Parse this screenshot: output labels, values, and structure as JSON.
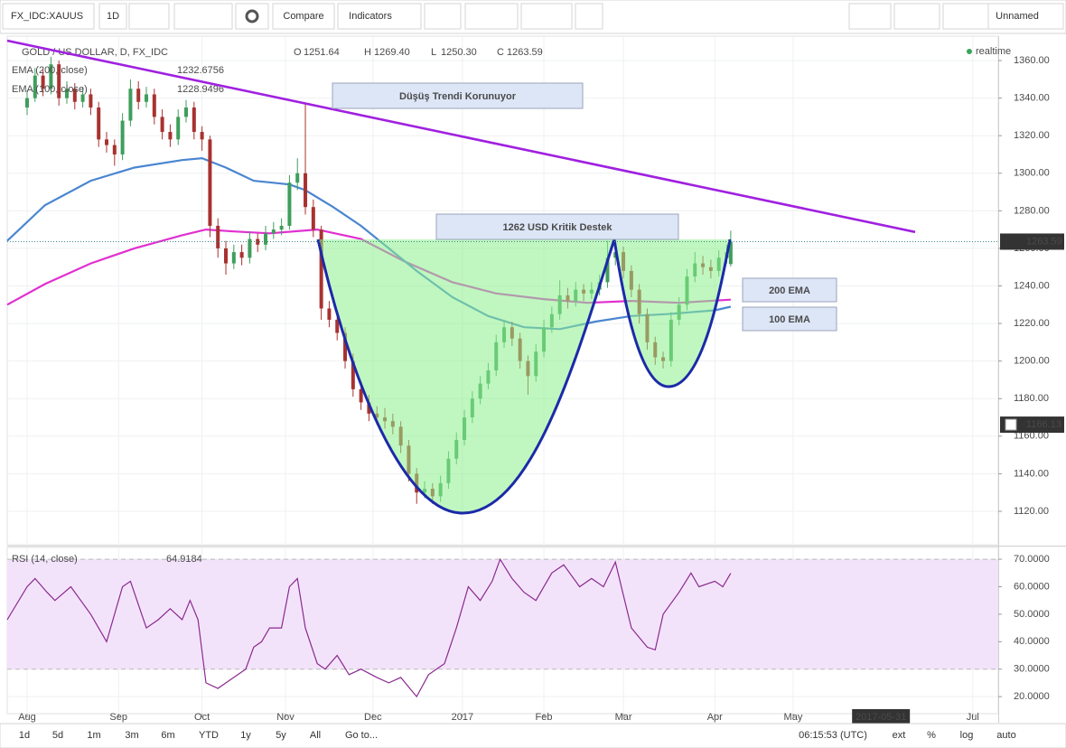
{
  "toolbar": {
    "symbol": "FX_IDC:XAUUS",
    "interval": "1D",
    "compare": "Compare",
    "indicators": "Indicators",
    "layout": "Unnamed"
  },
  "bottom_bar": {
    "ranges": [
      "1d",
      "5d",
      "1m",
      "3m",
      "6m",
      "YTD",
      "1y",
      "5y",
      "All"
    ],
    "goto": "Go to...",
    "time": "06:15:53 (UTC)",
    "options": [
      "ext",
      "%",
      "log",
      "auto"
    ]
  },
  "chart_data": [
    {
      "type": "candlestick",
      "title": "GOLD / US DOLLAR, D, FX_IDC",
      "status": "realtime",
      "ohlc_legend": [
        {
          "key": "O",
          "text": "1251.64"
        },
        {
          "key": "H",
          "text": "1269.40"
        },
        {
          "key": "L",
          "text": "1250.30"
        },
        {
          "key": "C",
          "text": "1263.59"
        }
      ],
      "up_color": "#3f9e5c",
      "down_color": "#a8322f",
      "x": [
        0,
        2,
        4,
        6,
        8,
        10,
        12,
        14,
        16,
        18,
        20,
        22,
        24,
        26,
        28,
        30,
        32,
        34,
        36,
        38,
        40,
        42,
        44,
        46,
        48,
        50,
        52,
        54,
        56,
        58,
        60,
        62,
        64,
        66,
        68,
        70,
        72,
        74,
        76,
        78,
        80,
        82,
        84,
        86,
        88,
        90,
        92,
        94,
        96,
        98,
        100,
        102,
        104,
        106,
        108,
        110,
        112,
        114,
        116,
        118,
        120,
        122,
        124,
        126,
        128,
        130,
        132,
        134,
        136,
        138,
        140,
        142,
        144,
        146,
        148,
        150,
        152,
        154,
        156,
        158,
        160,
        162,
        164,
        166,
        168,
        170,
        172,
        174,
        176,
        177
      ],
      "open": [
        1335,
        1340,
        1352,
        1345,
        1358,
        1340,
        1345,
        1338,
        1342,
        1335,
        1318,
        1315,
        1310,
        1328,
        1345,
        1338,
        1342,
        1330,
        1322,
        1318,
        1330,
        1335,
        1322,
        1318,
        1272,
        1260,
        1252,
        1258,
        1255,
        1265,
        1262,
        1268,
        1270,
        1272,
        1295,
        1300,
        1282,
        1270,
        1228,
        1222,
        1215,
        1200,
        1185,
        1178,
        1172,
        1170,
        1168,
        1165,
        1155,
        1140,
        1130,
        1132,
        1128,
        1135,
        1148,
        1158,
        1170,
        1180,
        1188,
        1195,
        1210,
        1218,
        1212,
        1200,
        1192,
        1205,
        1218,
        1225,
        1235,
        1232,
        1238,
        1236,
        1238,
        1242,
        1255,
        1258,
        1248,
        1238,
        1225,
        1210,
        1202,
        1200,
        1222,
        1230,
        1245,
        1252,
        1250,
        1248,
        1255,
        1251.64
      ],
      "high": [
        1344,
        1356,
        1355,
        1362,
        1360,
        1349,
        1348,
        1346,
        1345,
        1338,
        1322,
        1318,
        1332,
        1350,
        1349,
        1346,
        1345,
        1334,
        1326,
        1334,
        1339,
        1338,
        1325,
        1320,
        1276,
        1264,
        1262,
        1262,
        1269,
        1268,
        1272,
        1274,
        1276,
        1299,
        1308,
        1337,
        1286,
        1272,
        1232,
        1226,
        1218,
        1204,
        1189,
        1182,
        1176,
        1175,
        1172,
        1168,
        1158,
        1143,
        1136,
        1135,
        1139,
        1152,
        1162,
        1174,
        1184,
        1192,
        1199,
        1214,
        1222,
        1221,
        1215,
        1203,
        1209,
        1222,
        1229,
        1243,
        1239,
        1242,
        1241,
        1242,
        1246,
        1264,
        1262,
        1261,
        1251,
        1241,
        1228,
        1213,
        1205,
        1226,
        1234,
        1249,
        1258,
        1256,
        1254,
        1259,
        1262,
        1269.4
      ],
      "low": [
        1331,
        1338,
        1341,
        1342,
        1336,
        1337,
        1334,
        1335,
        1331,
        1314,
        1311,
        1304,
        1307,
        1325,
        1334,
        1335,
        1326,
        1318,
        1314,
        1315,
        1327,
        1318,
        1312,
        1266,
        1255,
        1246,
        1249,
        1251,
        1252,
        1258,
        1259,
        1265,
        1267,
        1270,
        1291,
        1278,
        1266,
        1222,
        1218,
        1211,
        1196,
        1181,
        1174,
        1168,
        1166,
        1164,
        1161,
        1151,
        1136,
        1124,
        1127,
        1124,
        1125,
        1132,
        1145,
        1155,
        1167,
        1177,
        1185,
        1192,
        1207,
        1208,
        1196,
        1182,
        1189,
        1202,
        1215,
        1222,
        1228,
        1229,
        1232,
        1233,
        1235,
        1239,
        1251,
        1244,
        1234,
        1220,
        1206,
        1198,
        1196,
        1197,
        1219,
        1227,
        1242,
        1246,
        1244,
        1245,
        1252,
        1250.3
      ],
      "close": [
        1340,
        1352,
        1345,
        1358,
        1340,
        1345,
        1338,
        1342,
        1335,
        1318,
        1315,
        1310,
        1328,
        1345,
        1338,
        1342,
        1330,
        1322,
        1318,
        1330,
        1335,
        1322,
        1318,
        1272,
        1260,
        1252,
        1258,
        1255,
        1265,
        1262,
        1268,
        1270,
        1272,
        1295,
        1300,
        1282,
        1270,
        1228,
        1222,
        1215,
        1200,
        1185,
        1178,
        1172,
        1170,
        1168,
        1165,
        1155,
        1140,
        1130,
        1132,
        1128,
        1135,
        1148,
        1158,
        1170,
        1180,
        1188,
        1195,
        1210,
        1218,
        1212,
        1200,
        1192,
        1205,
        1218,
        1225,
        1235,
        1232,
        1238,
        1236,
        1238,
        1242,
        1255,
        1258,
        1248,
        1238,
        1225,
        1210,
        1202,
        1200,
        1222,
        1230,
        1245,
        1252,
        1250,
        1248,
        1255,
        1258,
        1263.59
      ],
      "series": [
        {
          "name": "EMA (200, close)",
          "legend_value": "1232.6756",
          "color": "#e030d0",
          "x": [
            -5,
            4.5,
            16,
            27,
            39,
            45,
            52,
            61,
            73,
            84,
            95,
            107,
            118,
            130,
            141,
            152,
            164,
            177
          ],
          "values": [
            1230,
            1241,
            1252,
            1260,
            1267,
            1270,
            1269,
            1268,
            1270,
            1265,
            1253,
            1242,
            1236,
            1233,
            1231,
            1232,
            1231,
            1232.6756
          ]
        },
        {
          "name": "EMA (100, close)",
          "legend_value": "1228.9496",
          "color": "#4a86d0",
          "x": [
            -5,
            4.5,
            16,
            27,
            39,
            44,
            50,
            57,
            66,
            70,
            77,
            84,
            91,
            98,
            107,
            116,
            125,
            134,
            143,
            152,
            161,
            173,
            177
          ],
          "values": [
            1264,
            1283,
            1296,
            1303,
            1307,
            1308,
            1303,
            1296,
            1294,
            1291,
            1282,
            1272,
            1260,
            1248,
            1234,
            1224,
            1218,
            1217,
            1221,
            1224,
            1225,
            1227,
            1228.9496
          ]
        },
        {
          "color": "#a020e0",
          "x": [
            -5,
            223.4
          ],
          "values": [
            1370.6,
            1268.7
          ]
        }
      ],
      "last_price": {
        "value": 1263.59,
        "label": "1263.59"
      },
      "crosshair_price": {
        "value": 1166.13,
        "label": "1166.13"
      },
      "annotations": [
        {
          "text": "Düşüş Trendi Korunuyor",
          "color": "#9a2fd6"
        },
        {
          "text": "1262 USD Kritik Destek",
          "color": "#16257a"
        },
        {
          "text": "200 EMA",
          "color": "#e020c8"
        },
        {
          "text": "100 EMA",
          "color": "#3a72d0"
        }
      ],
      "xlim": [
        -5,
        244.3
      ],
      "ylim": [
        1102.2,
        1373
      ],
      "yticks": [
        {
          "value": 1120,
          "label": "1120.00"
        },
        {
          "value": 1140,
          "label": "1140.00"
        },
        {
          "value": 1160,
          "label": "1160.00"
        },
        {
          "value": 1180,
          "label": "1180.00"
        },
        {
          "value": 1200,
          "label": "1200.00"
        },
        {
          "value": 1220,
          "label": "1220.00"
        },
        {
          "value": 1240,
          "label": "1240.00"
        },
        {
          "value": 1260,
          "label": "1260.00"
        },
        {
          "value": 1280,
          "label": "1280.00"
        },
        {
          "value": 1300,
          "label": "1300.00"
        },
        {
          "value": 1320,
          "label": "1320.00"
        },
        {
          "value": 1340,
          "label": "1340.00"
        },
        {
          "value": 1360,
          "label": "1360.00"
        }
      ],
      "grid": true
    },
    {
      "type": "line",
      "title": "RSI (14, close)",
      "legend_value": "64.9184",
      "band": [
        30,
        70
      ],
      "band_color": "#f3e3fa",
      "series": [
        {
          "color": "#8a2a8e",
          "x": [
            -5,
            0,
            2,
            5,
            7,
            11,
            16,
            20,
            24,
            26,
            30,
            33,
            36,
            39,
            41,
            43,
            45,
            48,
            51,
            55,
            57,
            59,
            61,
            64,
            66,
            68,
            70,
            73,
            75,
            78,
            81,
            84,
            88,
            91,
            94,
            98,
            101,
            105,
            108,
            111,
            114,
            117,
            119,
            122,
            125,
            128,
            132,
            135,
            139,
            142,
            145,
            148,
            150,
            152,
            156,
            158,
            160,
            164,
            167,
            169,
            173,
            175,
            177
          ],
          "values": [
            48,
            60,
            63,
            58,
            55,
            60,
            50,
            40,
            60,
            62,
            45,
            48,
            52,
            48,
            55,
            48,
            25,
            23,
            26,
            30,
            38,
            40,
            45,
            45,
            60,
            63,
            45,
            32,
            30,
            35,
            28,
            30,
            27,
            25,
            27,
            20,
            28,
            32,
            45,
            60,
            55,
            62,
            70,
            63,
            58,
            55,
            65,
            68,
            60,
            63,
            60,
            69,
            57,
            45,
            38,
            37,
            50,
            58,
            65,
            60,
            62,
            60,
            64.9184
          ]
        }
      ],
      "xlim": [
        -5,
        244.3
      ],
      "ylim": [
        13.8,
        74.3
      ],
      "xticks": [
        {
          "value": 0,
          "label": "Aug"
        },
        {
          "value": 23,
          "label": "Sep"
        },
        {
          "value": 44,
          "label": "Oct"
        },
        {
          "value": 65,
          "label": "Nov"
        },
        {
          "value": 87,
          "label": "Dec"
        },
        {
          "value": 109.5,
          "label": "2017"
        },
        {
          "value": 130,
          "label": "Feb"
        },
        {
          "value": 150,
          "label": "Mar"
        },
        {
          "value": 173,
          "label": "Apr"
        },
        {
          "value": 192.7,
          "label": "May"
        },
        {
          "value": 237.9,
          "label": "Jul"
        }
      ],
      "crosshair_x": {
        "value": 214.8,
        "label": "2017-05-31"
      },
      "yticks": [
        {
          "value": 20,
          "label": "20.0000"
        },
        {
          "value": 30,
          "label": "30.0000"
        },
        {
          "value": 40,
          "label": "40.0000"
        },
        {
          "value": 50,
          "label": "50.0000"
        },
        {
          "value": 60,
          "label": "60.0000"
        },
        {
          "value": 70,
          "label": "70.0000"
        }
      ],
      "grid": true
    }
  ]
}
